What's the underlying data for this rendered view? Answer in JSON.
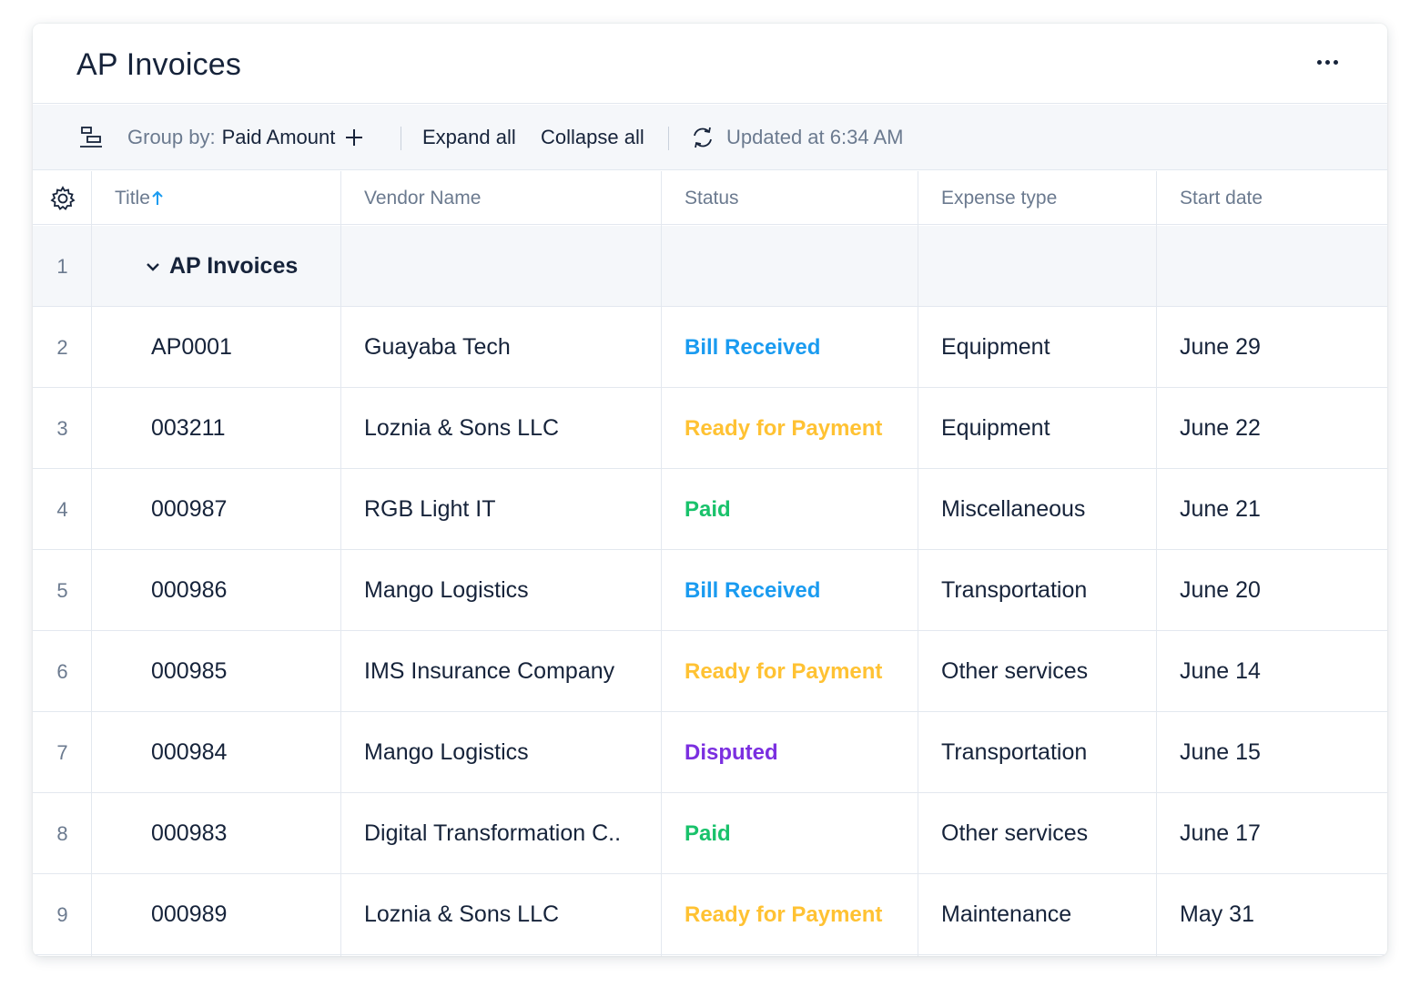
{
  "header": {
    "title": "AP Invoices",
    "more_icon": "more-horizontal-icon"
  },
  "toolbar": {
    "group_icon": "group-by-icon",
    "group_by_prefix": "Group by:",
    "group_by_value": "Paid Amount",
    "add_icon": "plus-icon",
    "expand_all": "Expand all",
    "collapse_all": "Collapse all",
    "refresh_icon": "refresh-icon",
    "updated_text": "Updated at 6:34 AM"
  },
  "columns": {
    "settings_icon": "gear-icon",
    "title": "Title",
    "sort_icon": "arrow-up-icon",
    "vendor": "Vendor Name",
    "status": "Status",
    "expense": "Expense type",
    "start": "Start date"
  },
  "group": {
    "row_number": "1",
    "label": "AP Invoices",
    "toggle_icon": "chevron-down-icon"
  },
  "colors": {
    "Bill Received": "#1a9bf0",
    "Ready for Payment": "#ffc233",
    "Paid": "#19c26b",
    "Disputed": "#7b2fe0"
  },
  "rows": [
    {
      "num": "2",
      "title": "AP0001",
      "vendor": "Guayaba Tech",
      "status": "Bill Received",
      "expense": "Equipment",
      "start": "June 29"
    },
    {
      "num": "3",
      "title": "003211",
      "vendor": "Loznia & Sons LLC",
      "status": "Ready for Payment",
      "expense": "Equipment",
      "start": "June 22"
    },
    {
      "num": "4",
      "title": "000987",
      "vendor": "RGB Light IT",
      "status": "Paid",
      "expense": "Miscellaneous",
      "start": "June 21"
    },
    {
      "num": "5",
      "title": "000986",
      "vendor": "Mango Logistics",
      "status": "Bill Received",
      "expense": "Transportation",
      "start": "June 20"
    },
    {
      "num": "6",
      "title": "000985",
      "vendor": "IMS Insurance Company",
      "status": "Ready for Payment",
      "expense": "Other services",
      "start": "June 14"
    },
    {
      "num": "7",
      "title": "000984",
      "vendor": "Mango Logistics",
      "status": "Disputed",
      "expense": "Transportation",
      "start": "June 15"
    },
    {
      "num": "8",
      "title": "000983",
      "vendor": "Digital Transformation C..",
      "status": "Paid",
      "expense": "Other services",
      "start": "June 17"
    },
    {
      "num": "9",
      "title": "000989",
      "vendor": "Loznia & Sons LLC",
      "status": "Ready for Payment",
      "expense": "Maintenance",
      "start": "May 31"
    }
  ]
}
